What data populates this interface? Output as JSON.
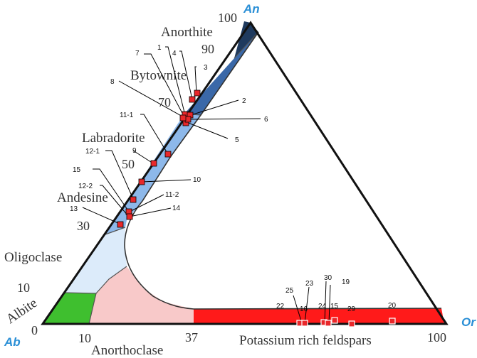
{
  "vertices": {
    "an": "An",
    "ab": "Ab",
    "or": "Or"
  },
  "corner_color": "#2a8fd6",
  "axis_labels": {
    "an_100": "100",
    "an_90": "90",
    "an_70": "70",
    "an_50": "50",
    "an_30": "30",
    "an_10": "10",
    "ab_0": "0",
    "base_10": "10",
    "base_37": "37",
    "base_100": "100"
  },
  "fields": {
    "anorthite": "Anorthite",
    "bytownite": "Bytownite",
    "labradorite": "Labradorite",
    "andesine": "Andesine",
    "oligoclase": "Oligoclase",
    "albite": "Albite",
    "anorthoclase": "Anorthoclase",
    "potassium": "Potassium rich feldspars"
  },
  "field_colors": {
    "anorthite": "#1f3a5e",
    "bytownite": "#3a68a8",
    "labradorite_andesine": "#8db8ea",
    "oligoclase": "#dcebfa",
    "albite": "#3fbf2f",
    "anorthoclase": "#f8c9c9",
    "potassium": "#ff1a1a"
  },
  "marker_colors": {
    "plagioclase": "#e8272a",
    "k_feldspar": "#e8272a"
  },
  "plagioclase_samples": [
    "1",
    "2",
    "3",
    "4",
    "5",
    "6",
    "7",
    "8",
    "9",
    "10",
    "11-1",
    "11-2",
    "12-1",
    "12-2",
    "13",
    "14",
    "15"
  ],
  "k_feldspar_samples": [
    "16",
    "19",
    "20",
    "22",
    "23",
    "24",
    "25",
    "29",
    "30",
    "15"
  ]
}
